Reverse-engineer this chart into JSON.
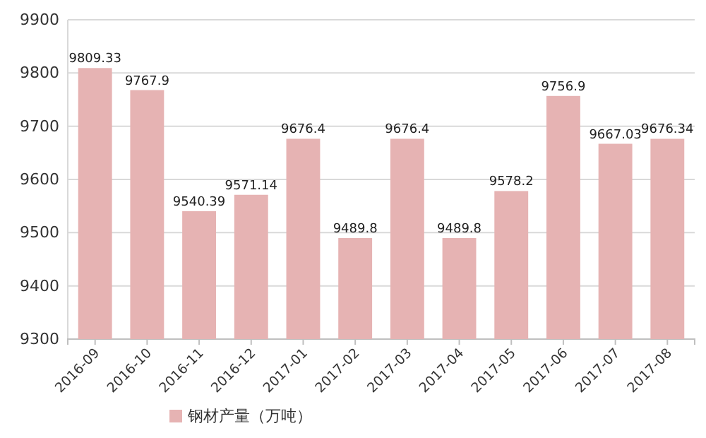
{
  "chart_data": {
    "type": "bar",
    "categories": [
      "2016-09",
      "2016-10",
      "2016-11",
      "2016-12",
      "2017-01",
      "2017-02",
      "2017-03",
      "2017-04",
      "2017-05",
      "2017-06",
      "2017-07",
      "2017-08"
    ],
    "series": [
      {
        "name": "钢材产量（万吨）",
        "color": "#e6b3b3",
        "values": [
          9809.33,
          9767.9,
          9540.39,
          9571.14,
          9676.4,
          9489.8,
          9676.4,
          9489.8,
          9578.2,
          9756.9,
          9667.03,
          9676.34
        ]
      }
    ],
    "ylim": [
      9300,
      9900
    ],
    "yticks": [
      9300,
      9400,
      9500,
      9600,
      9700,
      9800,
      9900
    ],
    "grid": "y",
    "legend": "bottom",
    "data_labels": true
  }
}
